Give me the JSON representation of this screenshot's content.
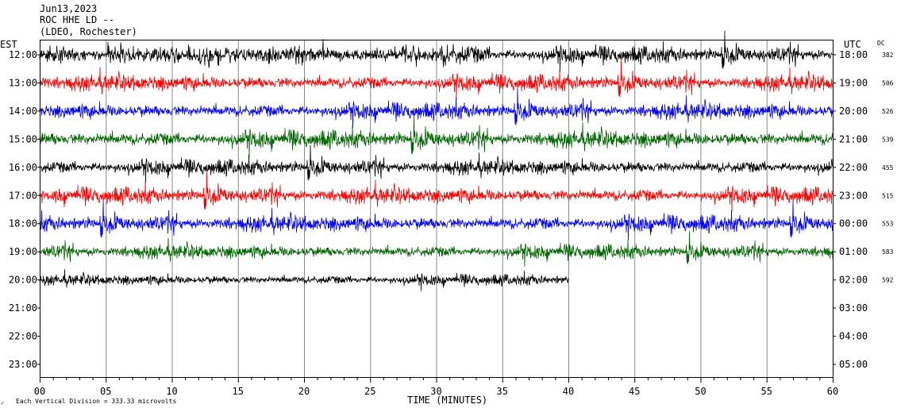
{
  "header": {
    "date": "Jun13,2023",
    "station": "ROC HHE LD --",
    "network": "(LDEO, Rochester)"
  },
  "labels": {
    "left_zone": "EST",
    "right_zone": "UTC",
    "dc": "DC",
    "scale_note": "Each Vertical Division =  333.33 microvolts",
    "scale_mark": "✓"
  },
  "chart_data": {
    "type": "line",
    "xlabel": "TIME (MINUTES)",
    "x_ticks": [
      "00",
      "05",
      "10",
      "15",
      "20",
      "25",
      "30",
      "35",
      "40",
      "45",
      "50",
      "55",
      "60"
    ],
    "xlim": [
      0,
      60
    ],
    "rows_left": [
      "12:00",
      "13:00",
      "14:00",
      "15:00",
      "16:00",
      "17:00",
      "18:00",
      "19:00",
      "20:00",
      "21:00",
      "22:00",
      "23:00"
    ],
    "rows_right": [
      "18:00",
      "19:00",
      "20:00",
      "21:00",
      "22:00",
      "23:00",
      "00:00",
      "01:00",
      "02:00",
      "03:00",
      "04:00",
      "05:00"
    ],
    "dc_values": [
      "382",
      "506",
      "526",
      "539",
      "455",
      "515",
      "553",
      "583",
      "592"
    ],
    "colors": [
      "#000000",
      "#ff0000",
      "#0000ff",
      "#006400"
    ],
    "traces": [
      {
        "row": 0,
        "color": "#000000",
        "end_minute": 60,
        "amplitude": 0.75
      },
      {
        "row": 1,
        "color": "#ff0000",
        "end_minute": 60,
        "amplitude": 0.75
      },
      {
        "row": 2,
        "color": "#0000ff",
        "end_minute": 60,
        "amplitude": 0.75
      },
      {
        "row": 3,
        "color": "#006400",
        "end_minute": 60,
        "amplitude": 0.8
      },
      {
        "row": 4,
        "color": "#000000",
        "end_minute": 60,
        "amplitude": 0.7
      },
      {
        "row": 5,
        "color": "#ff0000",
        "end_minute": 60,
        "amplitude": 0.75
      },
      {
        "row": 6,
        "color": "#0000ff",
        "end_minute": 60,
        "amplitude": 0.75
      },
      {
        "row": 7,
        "color": "#006400",
        "end_minute": 60,
        "amplitude": 0.65
      },
      {
        "row": 8,
        "color": "#000000",
        "end_minute": 40,
        "amplitude": 0.5
      }
    ]
  }
}
